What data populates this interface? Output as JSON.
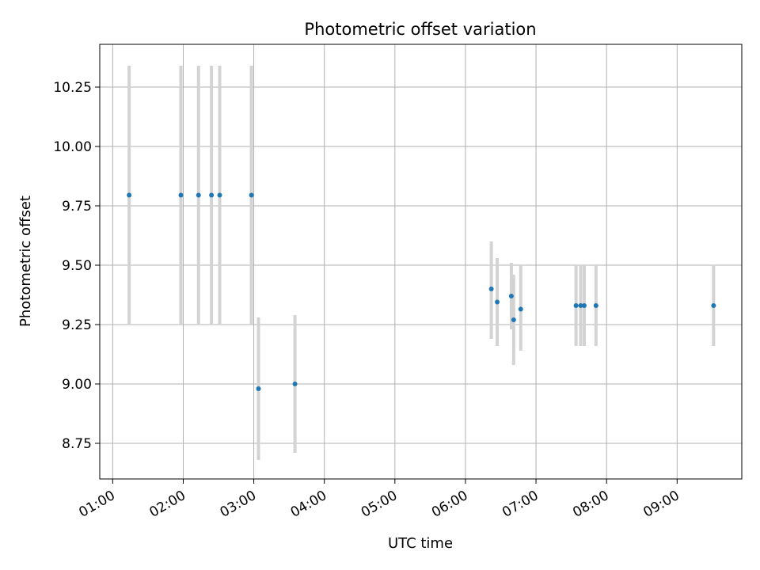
{
  "chart_data": {
    "type": "scatter",
    "title": "Photometric offset variation",
    "xlabel": "UTC time",
    "ylabel": "Photometric offset",
    "x_ticks": [
      "01:00",
      "02:00",
      "03:00",
      "04:00",
      "05:00",
      "06:00",
      "07:00",
      "08:00",
      "09:00"
    ],
    "y_ticks": [
      "8.75",
      "9.00",
      "9.25",
      "9.50",
      "9.75",
      "10.00",
      "10.25"
    ],
    "xlim": [
      "00:49",
      "09:55"
    ],
    "ylim": [
      8.6,
      10.43
    ],
    "grid": true,
    "colors": {
      "points": "#1f77b4",
      "errorbars": "#d3d3d3",
      "grid": "#b0b0b0"
    },
    "points": [
      {
        "x": "01:14",
        "y": 9.795,
        "low": 9.25,
        "high": 10.34
      },
      {
        "x": "01:58",
        "y": 9.795,
        "low": 9.25,
        "high": 10.34
      },
      {
        "x": "02:13",
        "y": 9.795,
        "low": 9.25,
        "high": 10.34
      },
      {
        "x": "02:24",
        "y": 9.795,
        "low": 9.25,
        "high": 10.34
      },
      {
        "x": "02:31",
        "y": 9.795,
        "low": 9.25,
        "high": 10.34
      },
      {
        "x": "02:58",
        "y": 9.795,
        "low": 9.25,
        "high": 10.34
      },
      {
        "x": "03:04",
        "y": 8.98,
        "low": 8.68,
        "high": 9.28
      },
      {
        "x": "03:35",
        "y": 9.0,
        "low": 8.71,
        "high": 9.29
      },
      {
        "x": "06:22",
        "y": 9.4,
        "low": 9.19,
        "high": 9.6
      },
      {
        "x": "06:27",
        "y": 9.345,
        "low": 9.16,
        "high": 9.53
      },
      {
        "x": "06:39",
        "y": 9.37,
        "low": 9.23,
        "high": 9.51
      },
      {
        "x": "06:41",
        "y": 9.27,
        "low": 9.08,
        "high": 9.46
      },
      {
        "x": "06:47",
        "y": 9.315,
        "low": 9.14,
        "high": 9.5
      },
      {
        "x": "07:34",
        "y": 9.33,
        "low": 9.16,
        "high": 9.5
      },
      {
        "x": "07:38",
        "y": 9.33,
        "low": 9.16,
        "high": 9.5
      },
      {
        "x": "07:41",
        "y": 9.33,
        "low": 9.16,
        "high": 9.5
      },
      {
        "x": "07:51",
        "y": 9.33,
        "low": 9.16,
        "high": 9.5
      },
      {
        "x": "09:31",
        "y": 9.33,
        "low": 9.16,
        "high": 9.5
      }
    ]
  }
}
